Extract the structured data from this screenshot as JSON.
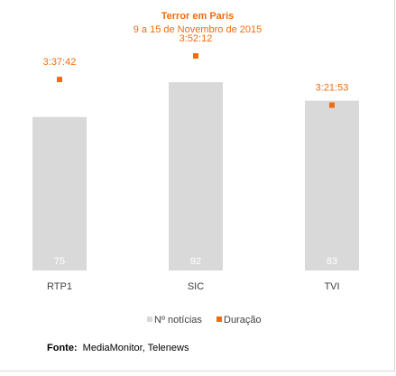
{
  "chart_data": {
    "type": "bar",
    "title": "Terror em Paris",
    "subtitle": "9 a 15 de Novembro de 2015",
    "categories": [
      "RTP1",
      "SIC",
      "TVI"
    ],
    "series": [
      {
        "name": "Nº notícias",
        "type": "bar",
        "color": "#d9d9d9",
        "values": [
          75,
          92,
          83
        ],
        "value_labels": [
          "75",
          "92",
          "83"
        ]
      },
      {
        "name": "Duração",
        "type": "marker",
        "color": "#f26b0f",
        "values": [
          "3:37:42",
          "3:52:12",
          "3:21:53"
        ],
        "value_labels": [
          "3:37:42",
          "3:52:12",
          "3:21:53"
        ]
      }
    ],
    "legend_position": "bottom",
    "grid": false
  },
  "source": {
    "label": "Fonte:",
    "text": "MediaMonitor, Telenews"
  },
  "colors": {
    "title": "#f26b0f",
    "bar": "#d9d9d9",
    "marker": "#f26b0f",
    "bar_label": "#ffffff",
    "axis_text": "#404040"
  }
}
